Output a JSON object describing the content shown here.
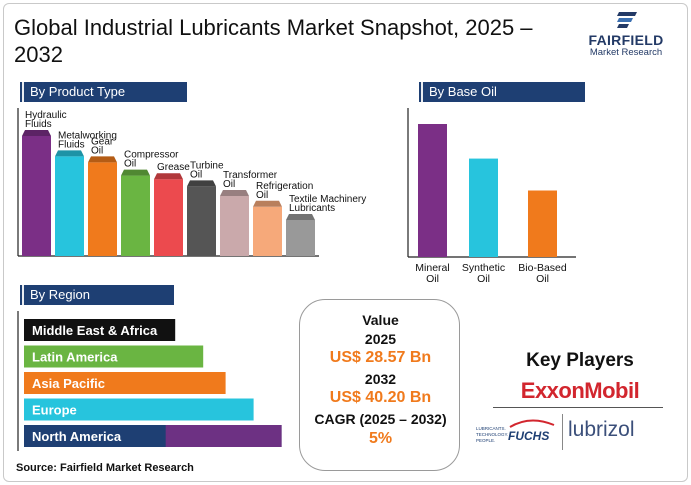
{
  "title": "Global Industrial Lubricants Market Snapshot, 2025 – 2032",
  "brand": {
    "name": "FAIRFIELD",
    "sub": "Market Research",
    "color": "#233a66"
  },
  "sections": {
    "product_type": "By Product Type",
    "base_oil": "By Base Oil",
    "region": "By Region"
  },
  "value_box": {
    "heading": "Value",
    "year1": "2025",
    "value1": "US$ 28.57 Bn",
    "year2": "2032",
    "value2": "US$ 40.20 Bn",
    "cagr_label": "CAGR (2025 – 2032)",
    "cagr_value": "5%"
  },
  "key_players": {
    "title": "Key Players",
    "logos": [
      "ExxonMobil",
      "FUCHS",
      "Lubrizol"
    ],
    "fuchs_tagline": "LUBRICANTS. TECHNOLOGY. PEOPLE."
  },
  "source": "Source: Fairfield Market Research",
  "colors": {
    "navy": "#1e3f73",
    "purple": "#7b2f86",
    "cyan": "#27c4dd",
    "orange": "#f07a1c",
    "green": "#6ab542",
    "red": "#ec4a4e",
    "darkgray": "#555555",
    "pink": "#caa9ab",
    "peach": "#f6a97a",
    "gray": "#999999",
    "black": "#111111",
    "exxon_red": "#d2262e"
  },
  "chart_data": [
    {
      "type": "bar",
      "title": "By Product Type",
      "categories": [
        "Hydraulic Fluids",
        "Metalworking Fluids",
        "Gear Oil",
        "Compressor Oil",
        "Grease",
        "Turbine Oil",
        "Transformer Oil",
        "Refrigeration Oil",
        "Textile Machinery Lubricants"
      ],
      "label_lines": [
        [
          "Hydraulic",
          "Fluids"
        ],
        [
          "Metalworking",
          "Fluids"
        ],
        [
          "Gear",
          "Oil"
        ],
        [
          "Compressor",
          "Oil"
        ],
        [
          "Grease"
        ],
        [
          "Turbine",
          "Oil"
        ],
        [
          "Transformer",
          "Oil"
        ],
        [
          "Refrigeration",
          "Oil"
        ],
        [
          "Textile Machinery",
          "Lubricants"
        ]
      ],
      "values": [
        100,
        83,
        78,
        67,
        64,
        58,
        50,
        41,
        30
      ],
      "colors": [
        "#7b2f86",
        "#27c4dd",
        "#f07a1c",
        "#6ab542",
        "#ec4a4e",
        "#555555",
        "#caa9ab",
        "#f6a97a",
        "#999999"
      ],
      "ylim": [
        0,
        100
      ],
      "xlabel": "",
      "ylabel": ""
    },
    {
      "type": "bar",
      "title": "By Base Oil",
      "categories": [
        "Mineral Oil",
        "Synthetic Oil",
        "Bio-Based Oil"
      ],
      "label_lines": [
        [
          "Mineral",
          "Oil"
        ],
        [
          "Synthetic",
          "Oil"
        ],
        [
          "Bio-Based",
          "Oil"
        ]
      ],
      "values": [
        100,
        74,
        50
      ],
      "colors": [
        "#7b2f86",
        "#27c4dd",
        "#f07a1c"
      ],
      "ylim": [
        0,
        100
      ],
      "xlabel": "",
      "ylabel": ""
    },
    {
      "type": "bar",
      "orientation": "horizontal",
      "title": "By Region",
      "categories": [
        "Middle East & Africa",
        "Latin America",
        "Asia Pacific",
        "Europe",
        "North America"
      ],
      "values": [
        54,
        64,
        72,
        82,
        92
      ],
      "colors": [
        "#111111",
        "#6ab542",
        "#f07a1c",
        "#27c4dd",
        "#1e3f73"
      ],
      "xlim": [
        0,
        100
      ],
      "xlabel": "",
      "ylabel": ""
    }
  ]
}
